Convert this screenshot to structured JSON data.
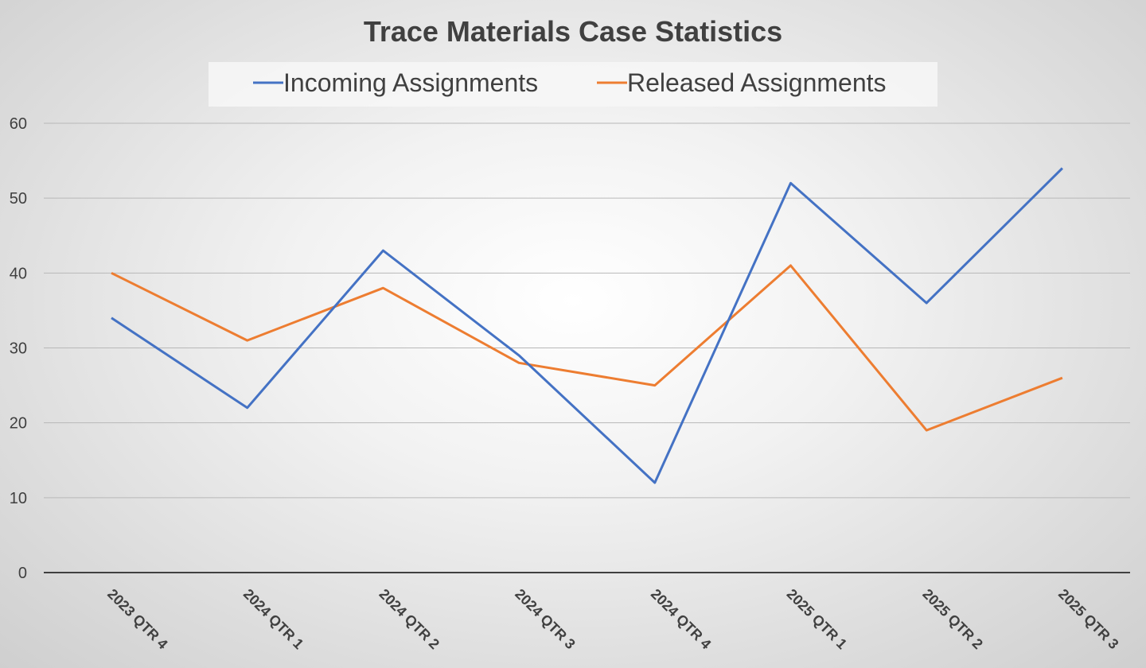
{
  "chart_data": {
    "type": "line",
    "title": "Trace Materials Case Statistics",
    "categories": [
      "2023 QTR 4",
      "2024 QTR 1",
      "2024 QTR 2",
      "2024 QTR 3",
      "2024 QTR 4",
      "2025 QTR 1",
      "2025 QTR 2",
      "2025 QTR 3"
    ],
    "series": [
      {
        "name": "Incoming Assignments",
        "color": "#4472c4",
        "values": [
          34,
          22,
          43,
          29,
          12,
          52,
          36,
          54
        ]
      },
      {
        "name": "Released Assignments",
        "color": "#ed7d31",
        "values": [
          40,
          31,
          38,
          28,
          25,
          41,
          19,
          26
        ]
      }
    ],
    "ylim": [
      0,
      60
    ],
    "yticks": [
      0,
      10,
      20,
      30,
      40,
      50,
      60
    ],
    "grid": true,
    "legend_position": "top"
  }
}
